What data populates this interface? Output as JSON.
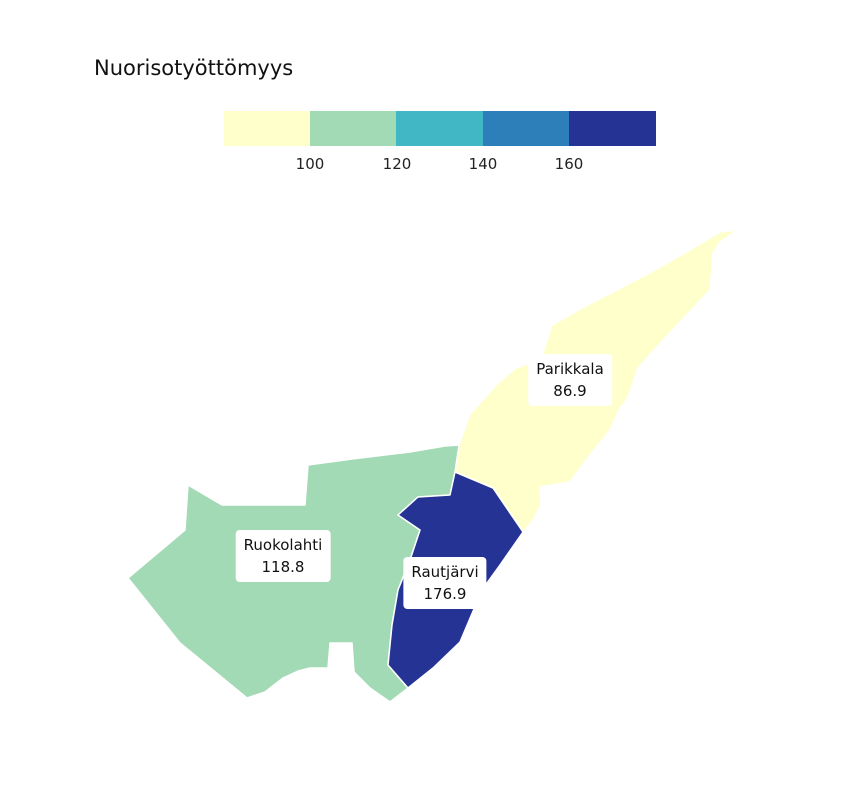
{
  "title": "Nuorisotyöttömyys",
  "legend": {
    "colors": [
      "#ffffcc",
      "#a1dab4",
      "#41b6c4",
      "#2c7fb8",
      "#253494"
    ],
    "ticks": [
      "100",
      "120",
      "140",
      "160"
    ]
  },
  "regions": [
    {
      "name": "Parikkala",
      "value": "86.9",
      "color": "#ffffcc"
    },
    {
      "name": "Ruokolahti",
      "value": "118.8",
      "color": "#a1dab4"
    },
    {
      "name": "Rautjärvi",
      "value": "176.9",
      "color": "#253494"
    }
  ]
}
